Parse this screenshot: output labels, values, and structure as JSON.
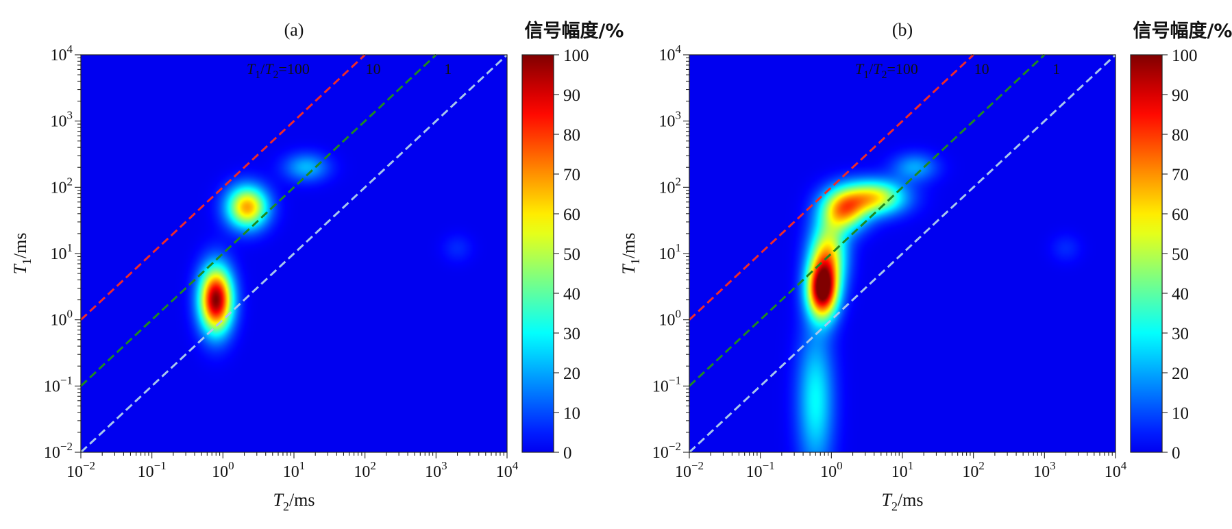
{
  "chart_data": [
    {
      "type": "heatmap",
      "panel_label": "(a)",
      "xlabel": {
        "sym": "T",
        "sub": "2",
        "unit": "/ms"
      },
      "ylabel": {
        "sym": "T",
        "sub": "1",
        "unit": "/ms"
      },
      "x_scale": "log",
      "y_scale": "log",
      "xlim": [
        0.01,
        10000
      ],
      "ylim": [
        0.01,
        10000
      ],
      "x_tick_exponents": [
        -2,
        -1,
        0,
        1,
        2,
        3,
        4
      ],
      "y_tick_exponents": [
        -2,
        -1,
        0,
        1,
        2,
        3,
        4
      ],
      "colorbar": {
        "title": "信号幅度/%",
        "min": 0,
        "max": 100,
        "ticks": [
          "0",
          "10",
          "20",
          "30",
          "40",
          "50",
          "60",
          "70",
          "80",
          "90",
          "100"
        ]
      },
      "reference_lines": [
        {
          "ratio": 100,
          "label": "T1/T2=100",
          "color": "#ee2a2a"
        },
        {
          "ratio": 10,
          "label": "10",
          "color": "#1f8a1f"
        },
        {
          "ratio": 1,
          "label": "1",
          "color": "#a8c6ee"
        }
      ],
      "peaks": [
        {
          "t2_ms": 0.8,
          "t1_ms": 2.0,
          "sigma_t2_dec": 0.16,
          "sigma_t1_dec": 0.34,
          "amplitude": 100
        },
        {
          "t2_ms": 2.2,
          "t1_ms": 50,
          "sigma_t2_dec": 0.2,
          "sigma_t1_dec": 0.22,
          "amplitude": 68
        },
        {
          "t2_ms": 15,
          "t1_ms": 200,
          "sigma_t2_dec": 0.22,
          "sigma_t1_dec": 0.15,
          "amplitude": 22
        },
        {
          "t2_ms": 2000,
          "t1_ms": 12,
          "sigma_t2_dec": 0.15,
          "sigma_t1_dec": 0.15,
          "amplitude": 6
        }
      ]
    },
    {
      "type": "heatmap",
      "panel_label": "(b)",
      "xlabel": {
        "sym": "T",
        "sub": "2",
        "unit": "/ms"
      },
      "ylabel": {
        "sym": "T",
        "sub": "1",
        "unit": "/ms"
      },
      "x_scale": "log",
      "y_scale": "log",
      "xlim": [
        0.01,
        10000
      ],
      "ylim": [
        0.01,
        10000
      ],
      "x_tick_exponents": [
        -2,
        -1,
        0,
        1,
        2,
        3,
        4
      ],
      "y_tick_exponents": [
        -2,
        -1,
        0,
        1,
        2,
        3,
        4
      ],
      "colorbar": {
        "title": "信号幅度/%",
        "min": 0,
        "max": 100,
        "ticks": [
          "0",
          "10",
          "20",
          "30",
          "40",
          "50",
          "60",
          "70",
          "80",
          "90",
          "100"
        ]
      },
      "reference_lines": [
        {
          "ratio": 100,
          "label": "T1/T2=100",
          "color": "#ee2a2a"
        },
        {
          "ratio": 10,
          "label": "10",
          "color": "#1f8a1f"
        },
        {
          "ratio": 1,
          "label": "1",
          "color": "#a8c6ee"
        }
      ],
      "peaks": [
        {
          "t2_ms": 0.75,
          "t1_ms": 2.8,
          "sigma_t2_dec": 0.15,
          "sigma_t1_dec": 0.3,
          "amplitude": 100
        },
        {
          "t2_ms": 0.9,
          "t1_ms": 10,
          "sigma_t2_dec": 0.18,
          "sigma_t1_dec": 0.35,
          "amplitude": 55
        },
        {
          "t2_ms": 1.5,
          "t1_ms": 45,
          "sigma_t2_dec": 0.22,
          "sigma_t1_dec": 0.22,
          "amplitude": 62
        },
        {
          "t2_ms": 4,
          "t1_ms": 70,
          "sigma_t2_dec": 0.3,
          "sigma_t1_dec": 0.18,
          "amplitude": 58
        },
        {
          "t2_ms": 15,
          "t1_ms": 200,
          "sigma_t2_dec": 0.22,
          "sigma_t1_dec": 0.15,
          "amplitude": 20
        },
        {
          "t2_ms": 0.6,
          "t1_ms": 0.06,
          "sigma_t2_dec": 0.18,
          "sigma_t1_dec": 0.75,
          "amplitude": 30
        },
        {
          "t2_ms": 2000,
          "t1_ms": 12,
          "sigma_t2_dec": 0.15,
          "sigma_t1_dec": 0.15,
          "amplitude": 6
        }
      ]
    }
  ]
}
